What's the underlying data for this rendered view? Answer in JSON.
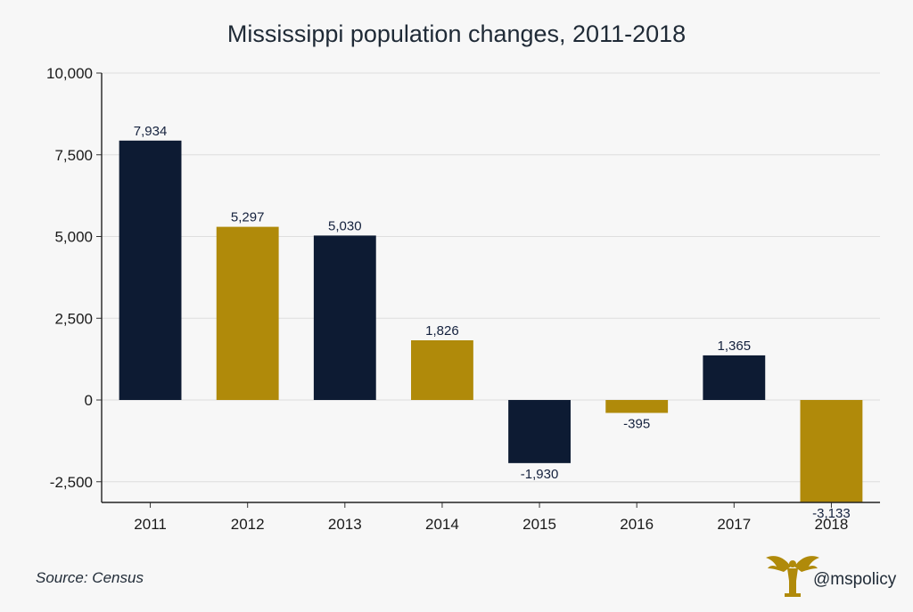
{
  "chart_data": {
    "type": "bar",
    "title": "Mississippi population changes, 2011-2018",
    "categories": [
      "2011",
      "2012",
      "2013",
      "2014",
      "2015",
      "2016",
      "2017",
      "2018"
    ],
    "values": [
      7934,
      5297,
      5030,
      1826,
      -1930,
      -395,
      1365,
      -3133
    ],
    "value_labels": [
      "7,934",
      "5,297",
      "5,030",
      "1,826",
      "-1,930",
      "-395",
      "1,365",
      "-3,133"
    ],
    "bar_colors": [
      "#0d1b33",
      "#b08a0a",
      "#0d1b33",
      "#b08a0a",
      "#0d1b33",
      "#b08a0a",
      "#0d1b33",
      "#b08a0a"
    ],
    "ylim": [
      -3133,
      10000
    ],
    "yticks": [
      -2500,
      0,
      2500,
      5000,
      7500,
      10000
    ],
    "ytick_labels": [
      "-2,500",
      "0",
      "2,500",
      "5,000",
      "7,500",
      "10,000"
    ],
    "xlabel": "",
    "ylabel": "",
    "grid": true
  },
  "footer": {
    "source": "Source: Census",
    "handle": "@mspolicy",
    "logo_icon": "eagle-icon"
  }
}
